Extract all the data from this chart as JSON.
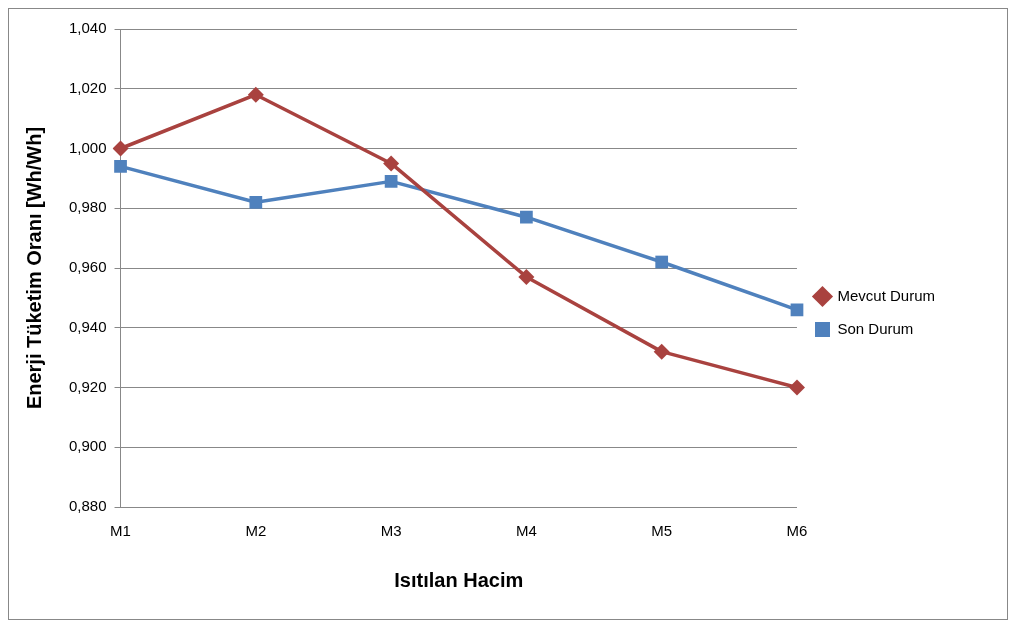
{
  "chart_data": {
    "type": "line",
    "xlabel": "Isıtılan Hacim",
    "ylabel": "Enerji Tüketim Oranı [Wh/Wh]",
    "categories": [
      "M1",
      "M2",
      "M3",
      "M4",
      "M5",
      "M6"
    ],
    "series": [
      {
        "name": "Mevcut Durum",
        "color": "#a9423f",
        "marker": "diamond",
        "values": [
          1.0,
          1.018,
          0.995,
          0.957,
          0.932,
          0.92
        ]
      },
      {
        "name": "Son Durum",
        "color": "#4f81bd",
        "marker": "square",
        "values": [
          0.994,
          0.982,
          0.989,
          0.977,
          0.962,
          0.946
        ]
      }
    ],
    "ylim": [
      0.88,
      1.04
    ],
    "yticks": [
      {
        "value": 0.88,
        "label": "0,880"
      },
      {
        "value": 0.9,
        "label": "0,900"
      },
      {
        "value": 0.92,
        "label": "0,920"
      },
      {
        "value": 0.94,
        "label": "0,940"
      },
      {
        "value": 0.96,
        "label": "0,960"
      },
      {
        "value": 0.98,
        "label": "0,980"
      },
      {
        "value": 1.0,
        "label": "1,000"
      },
      {
        "value": 1.02,
        "label": "1,020"
      },
      {
        "value": 1.04,
        "label": "1,040"
      }
    ],
    "grid": "y",
    "legend": "right",
    "line_style": "solid"
  }
}
